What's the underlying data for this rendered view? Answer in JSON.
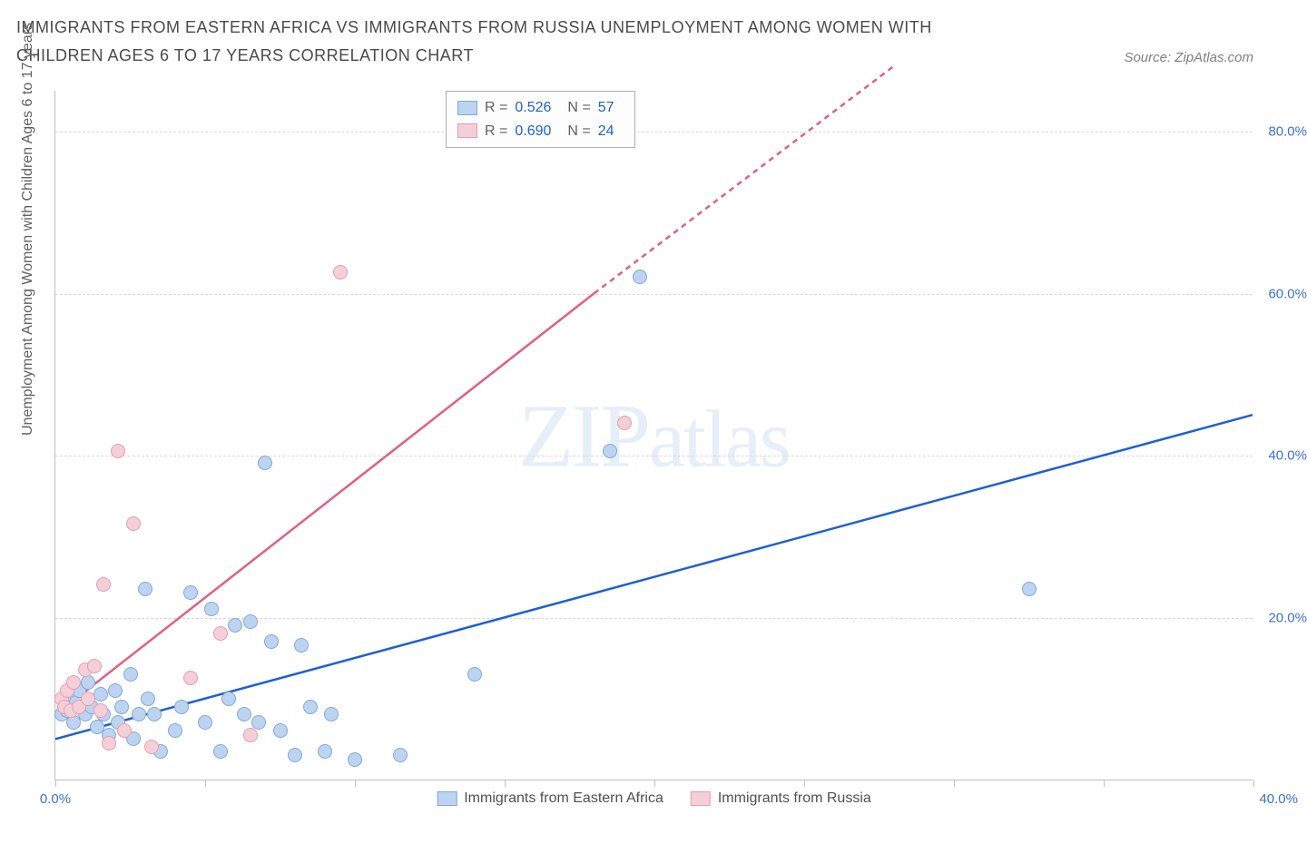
{
  "title": "IMMIGRANTS FROM EASTERN AFRICA VS IMMIGRANTS FROM RUSSIA UNEMPLOYMENT AMONG WOMEN WITH CHILDREN AGES 6 TO 17 YEARS CORRELATION CHART",
  "source": "Source: ZipAtlas.com",
  "watermark": "ZIPatlas",
  "y_axis": {
    "label": "Unemployment Among Women with Children Ages 6 to 17 years",
    "ticks": [
      20.0,
      40.0,
      60.0,
      80.0
    ],
    "tick_format": "%",
    "min": 0,
    "max": 85,
    "label_color": "#606060",
    "tick_color": "#3b6fd8",
    "grid_color": "#d8d8d8",
    "fontsize": 15
  },
  "x_axis": {
    "min": 0,
    "max": 40,
    "ticks_minor": [
      0,
      5,
      10,
      15,
      20,
      25,
      30,
      35,
      40
    ],
    "left_label": "0.0%",
    "right_label": "40.0%",
    "tick_color": "#3b6fd8"
  },
  "series": [
    {
      "id": "eastern-africa",
      "name": "Immigrants from Eastern Africa",
      "R": "0.526",
      "N": "57",
      "fill": "#bcd4f0",
      "stroke": "#7fa8e0",
      "line_color": "#1e5fd6",
      "marker_radius": 8,
      "trend": {
        "x1": 0,
        "y1": 5,
        "x2": 40,
        "y2": 45,
        "dashed_after_x": 40
      },
      "points": [
        [
          0.2,
          8
        ],
        [
          0.3,
          9
        ],
        [
          0.4,
          8.5
        ],
        [
          0.5,
          10
        ],
        [
          0.6,
          7
        ],
        [
          0.7,
          9.5
        ],
        [
          0.8,
          11
        ],
        [
          1.0,
          8
        ],
        [
          1.1,
          12
        ],
        [
          1.2,
          9
        ],
        [
          1.4,
          6.5
        ],
        [
          1.5,
          10.5
        ],
        [
          1.6,
          8
        ],
        [
          1.8,
          5.5
        ],
        [
          2.0,
          11
        ],
        [
          2.1,
          7
        ],
        [
          2.2,
          9
        ],
        [
          2.5,
          13
        ],
        [
          2.6,
          5
        ],
        [
          2.8,
          8
        ],
        [
          3.0,
          23.5
        ],
        [
          3.1,
          10
        ],
        [
          3.3,
          8
        ],
        [
          3.5,
          3.5
        ],
        [
          4.0,
          6
        ],
        [
          4.2,
          9
        ],
        [
          4.5,
          23
        ],
        [
          5.0,
          7
        ],
        [
          5.2,
          21
        ],
        [
          5.5,
          3.5
        ],
        [
          5.8,
          10
        ],
        [
          6.0,
          19
        ],
        [
          6.3,
          8
        ],
        [
          6.5,
          19.5
        ],
        [
          6.8,
          7
        ],
        [
          7.0,
          39
        ],
        [
          7.2,
          17
        ],
        [
          7.5,
          6
        ],
        [
          8.0,
          3
        ],
        [
          8.2,
          16.5
        ],
        [
          8.5,
          9
        ],
        [
          9.0,
          3.5
        ],
        [
          9.2,
          8
        ],
        [
          10.0,
          2.5
        ],
        [
          11.5,
          3
        ],
        [
          14.0,
          13
        ],
        [
          18.5,
          40.5
        ],
        [
          19.5,
          62
        ],
        [
          32.5,
          23.5
        ]
      ]
    },
    {
      "id": "russia",
      "name": "Immigrants from Russia",
      "R": "0.690",
      "N": "24",
      "fill": "#f4cfd8",
      "stroke": "#e89cb0",
      "line_color": "#e0607f",
      "marker_radius": 8,
      "trend": {
        "x1": 0,
        "y1": 8,
        "x2": 18,
        "y2": 60,
        "dashed_after_x": 18,
        "x3": 28,
        "y3": 88
      },
      "points": [
        [
          0.2,
          10
        ],
        [
          0.3,
          9
        ],
        [
          0.4,
          11
        ],
        [
          0.5,
          8.5
        ],
        [
          0.6,
          12
        ],
        [
          0.8,
          9
        ],
        [
          1.0,
          13.5
        ],
        [
          1.1,
          10
        ],
        [
          1.3,
          14
        ],
        [
          1.5,
          8.5
        ],
        [
          1.6,
          24
        ],
        [
          1.8,
          4.5
        ],
        [
          2.1,
          40.5
        ],
        [
          2.3,
          6
        ],
        [
          2.6,
          31.5
        ],
        [
          3.2,
          4
        ],
        [
          4.5,
          12.5
        ],
        [
          5.5,
          18
        ],
        [
          6.5,
          5.5
        ],
        [
          9.5,
          62.5
        ],
        [
          19.0,
          44
        ]
      ]
    }
  ],
  "legend_box": {
    "border_color": "#b0b0b0",
    "bg": "#fdfdfd"
  },
  "chart_background": "#ffffff"
}
